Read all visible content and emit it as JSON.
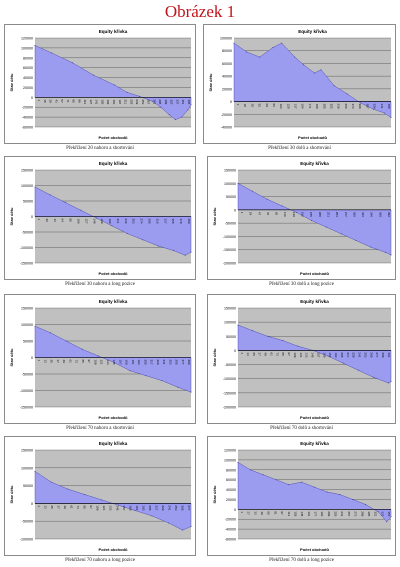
{
  "page": {
    "title": "Obrázek 1"
  },
  "chart_data": [
    {
      "type": "area",
      "title": "Equity křivka",
      "xlabel": "Počet obchodů",
      "ylabel": "Stav účtu",
      "caption": "Překřížení 20 nahoru a shortování",
      "ylim": [
        -60000,
        120000
      ],
      "yticks": [
        120000,
        100000,
        80000,
        60000,
        40000,
        20000,
        0,
        -20000,
        -40000,
        -60000
      ],
      "xticks": [
        "1",
        "15",
        "29",
        "43",
        "57",
        "71",
        "85",
        "99",
        "113",
        "127",
        "141",
        "155",
        "169",
        "183",
        "197",
        "211",
        "225",
        "239",
        "253",
        "267",
        "281",
        "295",
        "309",
        "323",
        "337",
        "351",
        "365"
      ],
      "x": [
        1,
        40,
        90,
        140,
        190,
        220,
        250,
        280,
        300,
        320,
        335,
        350,
        365,
        372
      ],
      "values": [
        105000,
        90000,
        70000,
        45000,
        25000,
        10000,
        2000,
        -8000,
        -20000,
        -35000,
        -45000,
        -40000,
        -25000,
        -15000
      ],
      "color": "#9b9bf0",
      "plot_bg": "#c0c0c0"
    },
    {
      "type": "area",
      "title": "Equity křivka",
      "xlabel": "Počet obchodů",
      "ylabel": "Stav účtu",
      "caption": "Překřížení 30 dolů a shortování",
      "ylim": [
        -40000,
        100000
      ],
      "yticks": [
        100000,
        80000,
        60000,
        40000,
        20000,
        0,
        -20000,
        -40000
      ],
      "xticks": [
        "1",
        "18",
        "35",
        "52",
        "69",
        "86",
        "103",
        "120",
        "137",
        "154",
        "171",
        "188",
        "205",
        "222",
        "239",
        "256",
        "273",
        "290",
        "307",
        "324",
        "341",
        "358"
      ],
      "x": [
        1,
        30,
        60,
        90,
        110,
        140,
        160,
        185,
        200,
        230,
        260,
        290,
        320,
        345,
        360
      ],
      "values": [
        92000,
        78000,
        70000,
        85000,
        92000,
        70000,
        58000,
        45000,
        50000,
        25000,
        12000,
        -2000,
        -12000,
        -18000,
        -25000
      ],
      "color": "#9b9bf0",
      "plot_bg": "#c0c0c0"
    },
    {
      "type": "area",
      "title": "Equity křivka",
      "xlabel": "Počet obchodů",
      "ylabel": "Stav účtu",
      "caption": "Překřížení 30 nahoru a long pozice",
      "ylim": [
        -150000,
        150000
      ],
      "yticks": [
        150000,
        100000,
        50000,
        0,
        -50000,
        -100000,
        -150000
      ],
      "xticks": [
        "1",
        "22",
        "43",
        "64",
        "85",
        "106",
        "127",
        "148",
        "169",
        "190",
        "211",
        "232",
        "253",
        "274",
        "295",
        "316",
        "337",
        "358",
        "379",
        "400"
      ],
      "x": [
        1,
        40,
        80,
        120,
        160,
        200,
        240,
        280,
        320,
        360,
        390,
        405
      ],
      "values": [
        95000,
        70000,
        45000,
        20000,
        -5000,
        -30000,
        -55000,
        -75000,
        -95000,
        -110000,
        -125000,
        -115000
      ],
      "color": "#9b9bf0",
      "plot_bg": "#c0c0c0"
    },
    {
      "type": "area",
      "title": "Equity křivka",
      "xlabel": "Počet obchodů",
      "ylabel": "Stav účtu",
      "caption": "Překřížení 30 dolů a long pozice",
      "ylim": [
        -200000,
        150000
      ],
      "yticks": [
        150000,
        100000,
        50000,
        0,
        -50000,
        -100000,
        -150000,
        -200000
      ],
      "xticks": [
        "1",
        "24",
        "47",
        "70",
        "93",
        "116",
        "139",
        "162",
        "185",
        "208",
        "231",
        "254",
        "277",
        "300",
        "323",
        "346",
        "369",
        "392"
      ],
      "x": [
        1,
        40,
        80,
        120,
        160,
        200,
        240,
        280,
        320,
        360,
        400,
        415
      ],
      "values": [
        100000,
        70000,
        40000,
        15000,
        -10000,
        -40000,
        -65000,
        -90000,
        -115000,
        -140000,
        -160000,
        -170000
      ],
      "color": "#9b9bf0",
      "plot_bg": "#c0c0c0"
    },
    {
      "type": "area",
      "title": "Equity křivka",
      "xlabel": "Počet obchodů",
      "ylabel": "Stav účtu",
      "caption": "Překřížení 70 nahoru a shortování",
      "ylim": [
        -150000,
        150000
      ],
      "yticks": [
        150000,
        100000,
        50000,
        0,
        -50000,
        -100000,
        -150000
      ],
      "xticks": [
        "1",
        "13",
        "25",
        "37",
        "49",
        "61",
        "73",
        "85",
        "97",
        "109",
        "121",
        "133",
        "145",
        "157",
        "169",
        "181",
        "193",
        "205",
        "217",
        "229",
        "241",
        "253",
        "265",
        "277",
        "289"
      ],
      "x": [
        1,
        30,
        60,
        90,
        120,
        150,
        180,
        210,
        240,
        270,
        295
      ],
      "values": [
        95000,
        75000,
        50000,
        25000,
        5000,
        -15000,
        -40000,
        -55000,
        -70000,
        -90000,
        -105000
      ],
      "color": "#9b9bf0",
      "plot_bg": "#c0c0c0"
    },
    {
      "type": "area",
      "title": "Equity křivka",
      "xlabel": "Počet obchodů",
      "ylabel": "Stav účtu",
      "caption": "Překřížení 70 dolů a shortování",
      "ylim": [
        -200000,
        150000
      ],
      "yticks": [
        150000,
        100000,
        50000,
        0,
        -50000,
        -100000,
        -150000,
        -200000
      ],
      "xticks": [
        "1",
        "13",
        "25",
        "37",
        "49",
        "61",
        "73",
        "85",
        "97",
        "109",
        "121",
        "133",
        "145",
        "157",
        "169",
        "181",
        "193",
        "205",
        "217",
        "229",
        "241",
        "253",
        "265",
        "277",
        "289",
        "301"
      ],
      "x": [
        1,
        30,
        60,
        90,
        120,
        150,
        180,
        210,
        240,
        270,
        300,
        305
      ],
      "values": [
        90000,
        70000,
        50000,
        35000,
        15000,
        0,
        -20000,
        -45000,
        -70000,
        -95000,
        -115000,
        -110000
      ],
      "color": "#9b9bf0",
      "plot_bg": "#c0c0c0"
    },
    {
      "type": "area",
      "title": "Equity křivka",
      "xlabel": "Počet obchodů",
      "ylabel": "Stav účtu",
      "caption": "Překřížení 70 nahoru a long pozice",
      "ylim": [
        -100000,
        150000
      ],
      "yticks": [
        150000,
        100000,
        50000,
        0,
        -50000,
        -100000
      ],
      "xticks": [
        "1",
        "13",
        "25",
        "37",
        "49",
        "61",
        "73",
        "85",
        "97",
        "109",
        "121",
        "133",
        "145",
        "157",
        "169",
        "181",
        "193",
        "205",
        "217",
        "229",
        "241",
        "253",
        "265",
        "277"
      ],
      "x": [
        1,
        30,
        60,
        90,
        120,
        150,
        180,
        210,
        240,
        265,
        280
      ],
      "values": [
        90000,
        60000,
        40000,
        25000,
        10000,
        -5000,
        -20000,
        -35000,
        -55000,
        -75000,
        -65000
      ],
      "color": "#9b9bf0",
      "plot_bg": "#c0c0c0"
    },
    {
      "type": "area",
      "title": "Equity křivka",
      "xlabel": "Počet obchodů",
      "ylabel": "Stav účtu",
      "caption": "Překřížení 70 dolů a long pozice",
      "ylim": [
        -60000,
        120000
      ],
      "yticks": [
        120000,
        100000,
        80000,
        60000,
        40000,
        20000,
        0,
        -20000,
        -40000,
        -60000
      ],
      "xticks": [
        "1",
        "17",
        "33",
        "49",
        "65",
        "81",
        "97",
        "113",
        "129",
        "145",
        "161",
        "177",
        "193",
        "209",
        "225",
        "241",
        "257",
        "273",
        "289",
        "305",
        "321",
        "337",
        "353"
      ],
      "x": [
        1,
        30,
        60,
        90,
        120,
        150,
        180,
        210,
        240,
        270,
        300,
        330,
        350,
        360
      ],
      "values": [
        95000,
        80000,
        70000,
        60000,
        50000,
        55000,
        45000,
        35000,
        30000,
        20000,
        10000,
        -5000,
        -25000,
        -15000
      ],
      "color": "#9b9bf0",
      "plot_bg": "#c0c0c0"
    }
  ]
}
